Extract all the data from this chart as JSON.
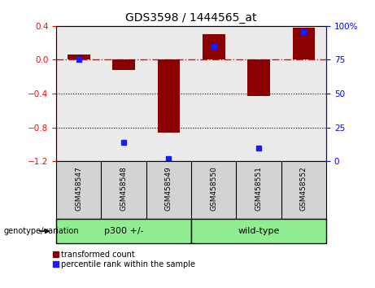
{
  "title": "GDS3598 / 1444565_at",
  "samples": [
    "GSM458547",
    "GSM458548",
    "GSM458549",
    "GSM458550",
    "GSM458551",
    "GSM458552"
  ],
  "transformed_count": [
    0.06,
    -0.12,
    -0.86,
    0.3,
    -0.43,
    0.38
  ],
  "percentile_rank": [
    75,
    14,
    2,
    85,
    10,
    96
  ],
  "ylim_left": [
    -1.2,
    0.4
  ],
  "ylim_right": [
    0,
    100
  ],
  "yticks_left": [
    -1.2,
    -0.8,
    -0.4,
    0.0,
    0.4
  ],
  "yticks_right": [
    0,
    25,
    50,
    75,
    100
  ],
  "dotted_lines": [
    -0.4,
    -0.8
  ],
  "groups": [
    {
      "label": "p300 +/-",
      "indices": [
        0,
        1,
        2
      ],
      "color": "#90EE90"
    },
    {
      "label": "wild-type",
      "indices": [
        3,
        4,
        5
      ],
      "color": "#90EE90"
    }
  ],
  "bar_color": "#8B0000",
  "percentile_color": "#1a1aff",
  "bar_width": 0.5,
  "background_color": "#ffffff",
  "plot_bg_color": "#ebebeb",
  "sample_box_color": "#d3d3d3",
  "label_transformed": "transformed count",
  "label_percentile": "percentile rank within the sample",
  "genotype_label": "genotype/variation"
}
